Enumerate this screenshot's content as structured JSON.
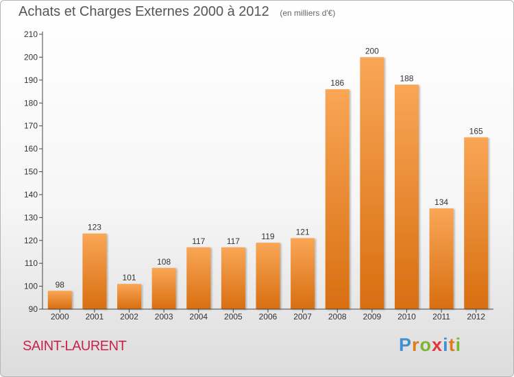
{
  "header": {
    "title": "Achats et Charges Externes 2000 à 2012",
    "subtitle": "(en milliers d'€)"
  },
  "footer": {
    "place": "SAINT-LAURENT",
    "logo": "Proxiti",
    "logo_colors": [
      "#3f8fd1",
      "#e07a1d",
      "#7ab62f",
      "#e2353b",
      "#3f8fd1",
      "#e07a1d",
      "#7ab62f"
    ]
  },
  "colors": {
    "bar_light": "#f9a656",
    "bar_dark": "#d86e10",
    "axis": "#444444",
    "text": "#333333"
  },
  "chart_data": {
    "type": "bar",
    "title": "Achats et Charges Externes 2000 à 2012",
    "categories": [
      "2000",
      "2001",
      "2002",
      "2003",
      "2004",
      "2005",
      "2006",
      "2007",
      "2008",
      "2009",
      "2010",
      "2011",
      "2012"
    ],
    "values": [
      98,
      123,
      101,
      108,
      117,
      117,
      119,
      121,
      186,
      200,
      188,
      134,
      165
    ],
    "ylim": [
      90,
      210
    ],
    "yticks": [
      90,
      100,
      110,
      120,
      130,
      140,
      150,
      160,
      170,
      180,
      190,
      200,
      210
    ],
    "xlabel": "",
    "ylabel": "",
    "grid": false,
    "data_labels": true
  }
}
